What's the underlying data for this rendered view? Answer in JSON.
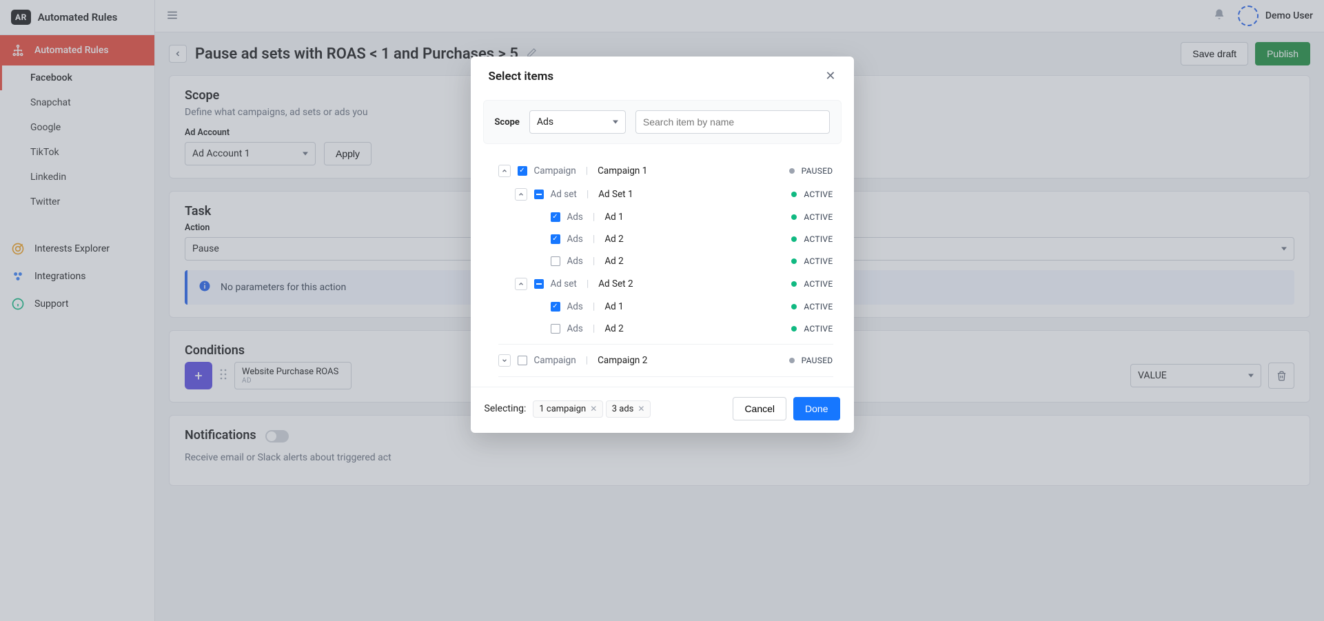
{
  "app": {
    "logo_text": "AR",
    "name": "Automated Rules"
  },
  "user": {
    "name": "Demo User"
  },
  "sidebar": {
    "primary": "Automated Rules",
    "channels": [
      "Facebook",
      "Snapchat",
      "Google",
      "TikTok",
      "Linkedin",
      "Twitter"
    ],
    "extras": [
      "Interests Explorer",
      "Integrations",
      "Support"
    ]
  },
  "page": {
    "title": "Pause ad sets with ROAS < 1 and Purchases > 5",
    "save_draft": "Save draft",
    "publish": "Publish"
  },
  "scope_card": {
    "title": "Scope",
    "sub": "Define what campaigns, ad sets or ads you",
    "field_label": "Ad Account",
    "account": "Ad Account 1",
    "apply": "Apply"
  },
  "task_card": {
    "title": "Task",
    "field_label": "Action",
    "action": "Pause",
    "info": "No parameters for this action"
  },
  "conditions_card": {
    "title": "Conditions",
    "chip_title": "Website Purchase ROAS",
    "chip_sub": "AD",
    "value": "VALUE"
  },
  "notifications_card": {
    "title": "Notifications",
    "sub": "Receive email or Slack alerts about triggered act"
  },
  "modal": {
    "title": "Select items",
    "scope_label": "Scope",
    "scope_value": "Ads",
    "search_placeholder": "Search item by name",
    "labels": {
      "campaign": "Campaign",
      "adset": "Ad set",
      "ads": "Ads"
    },
    "status": {
      "PAUSED": "PAUSED",
      "ACTIVE": "ACTIVE"
    },
    "tree": [
      {
        "type": "campaign",
        "name": "Campaign 1",
        "status": "PAUSED",
        "check": "checked",
        "expand": "up"
      },
      {
        "type": "adset",
        "name": "Ad Set 1",
        "status": "ACTIVE",
        "check": "indet",
        "expand": "up",
        "indent": 1
      },
      {
        "type": "ads",
        "name": "Ad 1",
        "status": "ACTIVE",
        "check": "checked",
        "indent": 2
      },
      {
        "type": "ads",
        "name": "Ad 2",
        "status": "ACTIVE",
        "check": "checked",
        "indent": 2
      },
      {
        "type": "ads",
        "name": "Ad 2",
        "status": "ACTIVE",
        "check": "none",
        "indent": 2
      },
      {
        "type": "adset",
        "name": "Ad Set 2",
        "status": "ACTIVE",
        "check": "indet",
        "expand": "up",
        "indent": 1
      },
      {
        "type": "ads",
        "name": "Ad 1",
        "status": "ACTIVE",
        "check": "checked",
        "indent": 2
      },
      {
        "type": "ads",
        "name": "Ad 2",
        "status": "ACTIVE",
        "check": "none",
        "indent": 2
      },
      {
        "divider": true
      },
      {
        "type": "campaign",
        "name": "Campaign 2",
        "status": "PAUSED",
        "check": "none",
        "expand": "down"
      }
    ],
    "selecting_label": "Selecting:",
    "chips": [
      "1 campaign",
      "3 ads"
    ],
    "cancel": "Cancel",
    "done": "Done"
  },
  "colors": {
    "brand_red": "#e84a3b",
    "accent_blue": "#1677ff",
    "green": "#1e8e3e",
    "purple": "#5b4de0",
    "active": "#10b981",
    "paused": "#9ca3af"
  }
}
